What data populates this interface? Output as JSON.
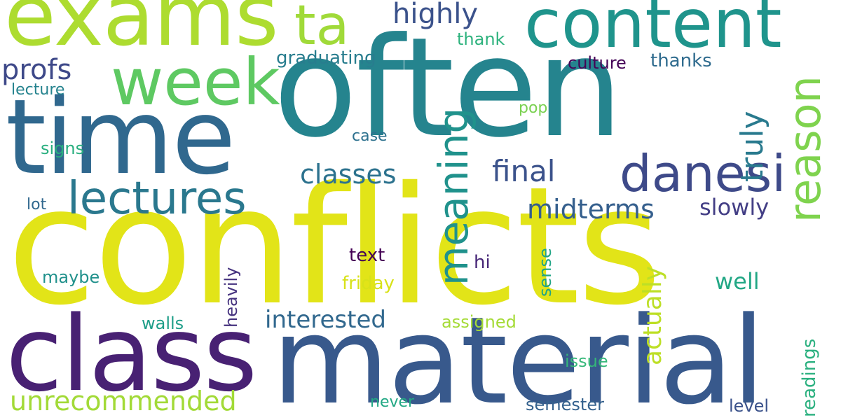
{
  "cloud": {
    "words": {
      "conflicts": "conflicts",
      "often": "often",
      "material": "material",
      "class": "class",
      "time": "time",
      "exams": "exams",
      "content": "content",
      "week": "week",
      "ta": "ta",
      "danesi": "danesi",
      "lectures": "lectures",
      "meaning": "meaning",
      "reason": "reason",
      "classes": "classes",
      "highly": "highly",
      "profs": "profs",
      "final": "final",
      "midterms": "midterms",
      "truly": "truly",
      "slowly": "slowly",
      "interested": "interested",
      "unrecommended": "unrecommended",
      "actually": "actually",
      "well": "well",
      "graduating": "graduating",
      "thank": "thank",
      "culture": "culture",
      "thanks": "thanks",
      "lecture": "lecture",
      "pop": "pop",
      "case": "case",
      "signs": "signs",
      "lot": "lot",
      "text": "text",
      "hi": "hi",
      "sense": "sense",
      "maybe": "maybe",
      "friday": "friday",
      "heavily": "heavily",
      "walls": "walls",
      "assigned": "assigned",
      "issue": "issue",
      "readings": "readings",
      "never": "never",
      "semester": "semester",
      "level": "level"
    },
    "background": "#ffffff"
  }
}
